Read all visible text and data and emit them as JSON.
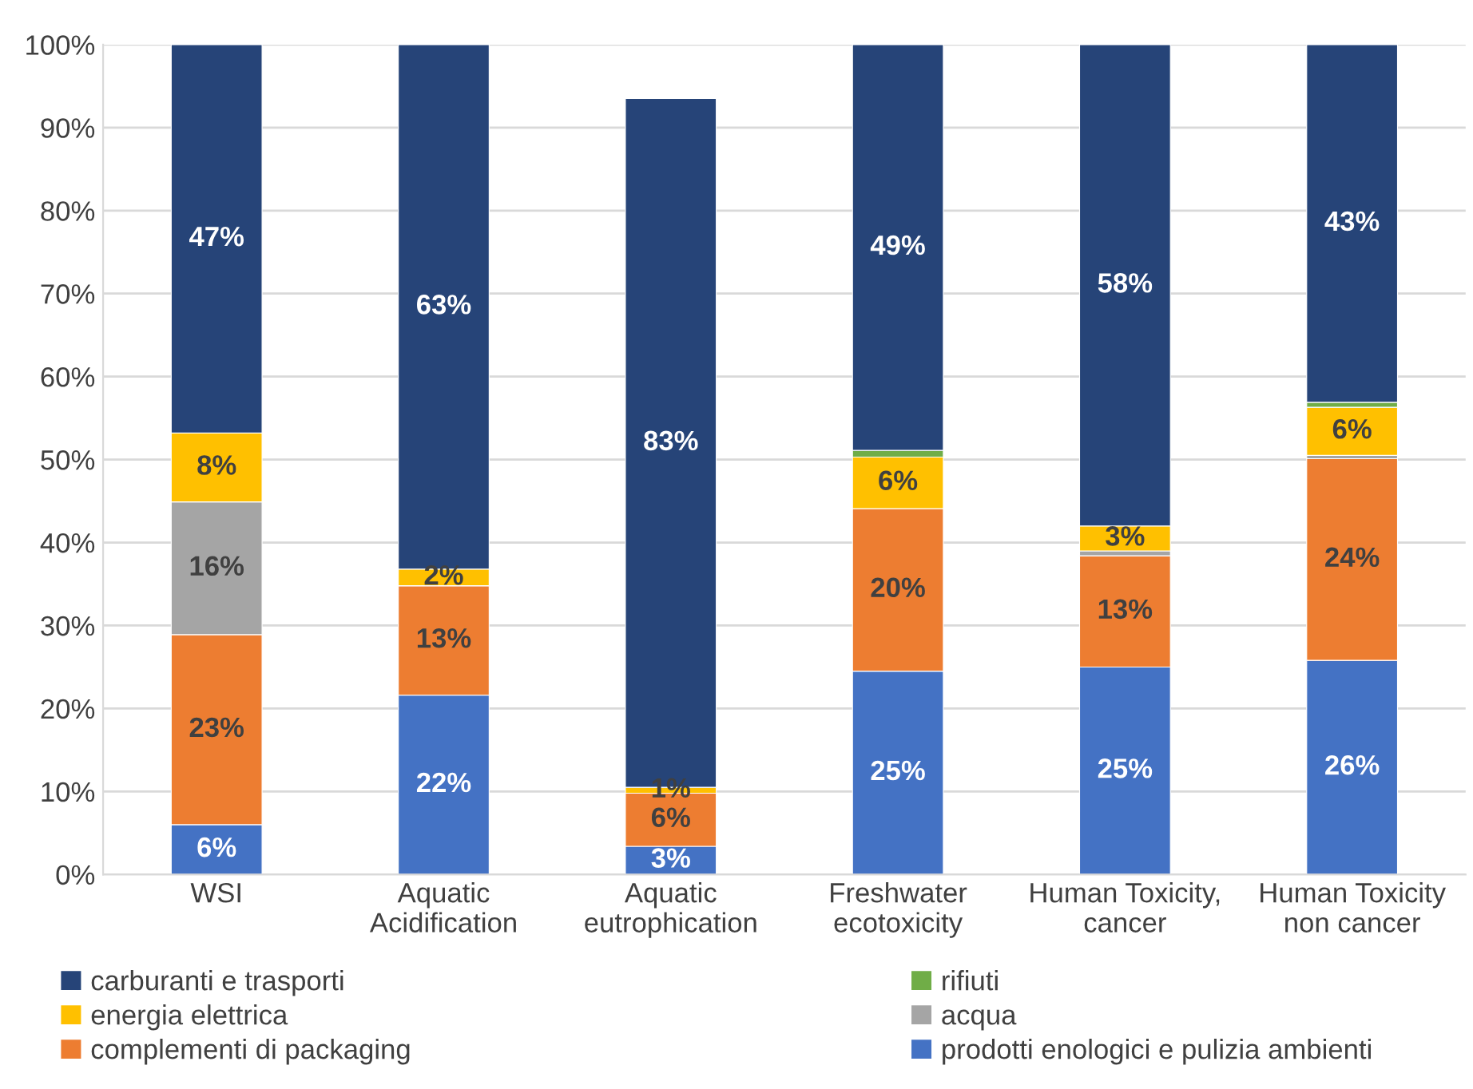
{
  "chart_data": {
    "type": "bar",
    "stacked": true,
    "categories": [
      "WSI",
      "Aquatic\nAcidification",
      "Aquatic\neutrophication",
      "Freshwater\necotoxicity",
      "Human Toxicity,\ncancer",
      "Human Toxicity\nnon cancer"
    ],
    "series": [
      {
        "name": "prodotti enologici e pulizia ambienti",
        "color": "#4472c4",
        "values": [
          6.0,
          21.6,
          3.4,
          24.5,
          25.0,
          25.8
        ],
        "value_labels": [
          "6%",
          "22%",
          "3%",
          "25%",
          "25%",
          "26%"
        ]
      },
      {
        "name": "complementi di packaging",
        "color": "#ed7d31",
        "values": [
          22.9,
          13.2,
          6.4,
          19.6,
          13.4,
          24.3
        ],
        "value_labels": [
          "23%",
          "13%",
          "6%",
          "20%",
          "13%",
          "24%"
        ]
      },
      {
        "name": "acqua",
        "color": "#a5a5a5",
        "values": [
          16.0,
          null,
          null,
          null,
          0.6,
          0.4
        ],
        "value_labels": [
          "16%",
          null,
          null,
          null,
          null,
          null
        ]
      },
      {
        "name": "energia elettrica",
        "color": "#ffc000",
        "values": [
          8.3,
          2.0,
          0.7,
          6.2,
          3.0,
          5.8
        ],
        "value_labels": [
          "8%",
          "2%",
          "1%",
          "6%",
          "3%",
          "6%"
        ]
      },
      {
        "name": "rifiuti",
        "color": "#70ad47",
        "values": [
          null,
          null,
          null,
          0.8,
          null,
          0.6
        ],
        "value_labels": [
          null,
          null,
          null,
          null,
          null,
          null
        ]
      },
      {
        "name": "carburanti e trasporti",
        "color": "#264478",
        "values": [
          46.8,
          63.2,
          83,
          48.9,
          58.0,
          43.1
        ],
        "value_labels": [
          "47%",
          "63%",
          "83%",
          "49%",
          "58%",
          "43%"
        ]
      }
    ],
    "ylim": [
      0,
      100
    ],
    "yticks": [
      {
        "value": 0,
        "label": "0%"
      },
      {
        "value": 10,
        "label": "10%"
      },
      {
        "value": 20,
        "label": "20%"
      },
      {
        "value": 30,
        "label": "30%"
      },
      {
        "value": 40,
        "label": "40%"
      },
      {
        "value": 50,
        "label": "50%"
      },
      {
        "value": 60,
        "label": "60%"
      },
      {
        "value": 70,
        "label": "70%"
      },
      {
        "value": 80,
        "label": "80%"
      },
      {
        "value": 90,
        "label": "90%"
      },
      {
        "value": 100,
        "label": "100%"
      }
    ],
    "grid": "y",
    "legend": "bottom"
  }
}
